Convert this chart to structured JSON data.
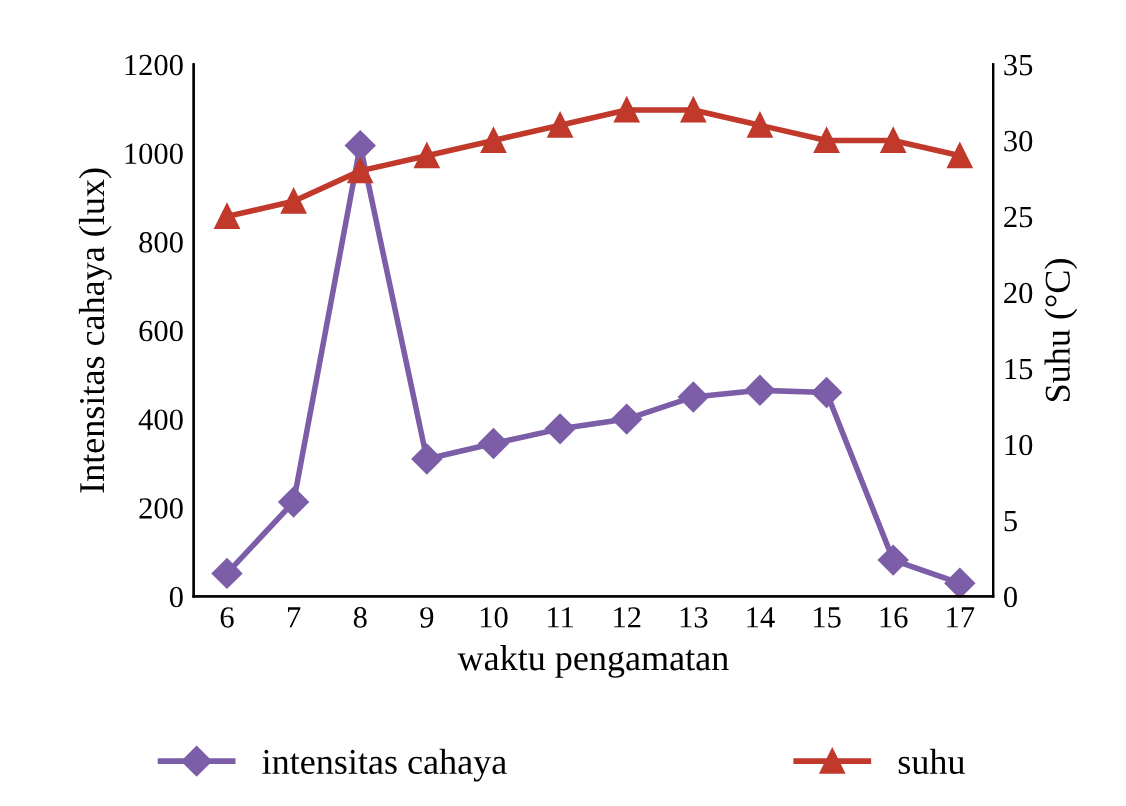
{
  "chart_data": {
    "type": "line",
    "xlabel": "waktu pengamatan",
    "ylabel": "Intensitas cahaya (lux)",
    "y2label": "Suhu (°C)",
    "categories": [
      "6",
      "7",
      "8",
      "9",
      "10",
      "11",
      "12",
      "13",
      "14",
      "15",
      "16",
      "17"
    ],
    "series": [
      {
        "name": "intensitas cahaya",
        "color": "#7b5ea7",
        "marker": "diamond",
        "values": [
          52,
          213,
          1017,
          310,
          345,
          378,
          400,
          450,
          465,
          460,
          82,
          30
        ]
      },
      {
        "name": "suhu",
        "color": "#c0392b",
        "marker": "triangle",
        "axis": "y2",
        "values": [
          25,
          26,
          28,
          29,
          30,
          31,
          32,
          32,
          31,
          30,
          30,
          29
        ]
      }
    ],
    "ylim": [
      0,
      1200
    ],
    "yticks": [
      0,
      200,
      400,
      600,
      800,
      1000,
      1200
    ],
    "y2lim": [
      0,
      35
    ],
    "y2ticks": [
      0,
      5,
      10,
      15,
      20,
      25,
      30,
      35
    ],
    "grid": false,
    "legend": "bottom",
    "line_style": "solid"
  }
}
